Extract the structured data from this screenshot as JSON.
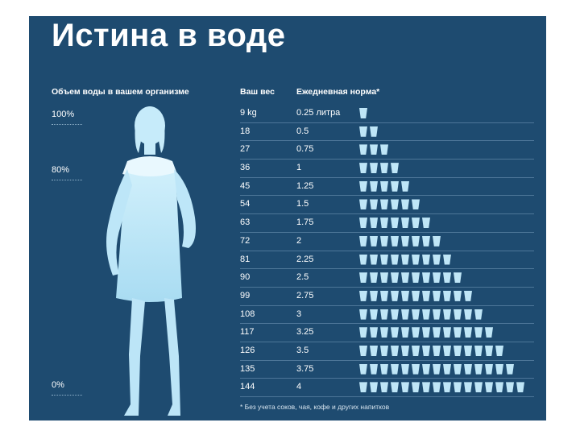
{
  "title": "Истина в воде",
  "body_water": {
    "header": "Объем воды в вашем организме",
    "scale": [
      "100%",
      "80%",
      "0%"
    ]
  },
  "table": {
    "weight_header": "Ваш вес",
    "norm_header": "Ежедневная норма*",
    "rows": [
      {
        "weight": "9 kg",
        "norm": "0.25 литра",
        "cups": 1
      },
      {
        "weight": "18",
        "norm": "0.5",
        "cups": 2
      },
      {
        "weight": "27",
        "norm": "0.75",
        "cups": 3
      },
      {
        "weight": "36",
        "norm": "1",
        "cups": 4
      },
      {
        "weight": "45",
        "norm": "1.25",
        "cups": 5
      },
      {
        "weight": "54",
        "norm": "1.5",
        "cups": 6
      },
      {
        "weight": "63",
        "norm": "1.75",
        "cups": 7
      },
      {
        "weight": "72",
        "norm": "2",
        "cups": 8
      },
      {
        "weight": "81",
        "norm": "2.25",
        "cups": 9
      },
      {
        "weight": "90",
        "norm": "2.5",
        "cups": 10
      },
      {
        "weight": "99",
        "norm": "2.75",
        "cups": 11
      },
      {
        "weight": "108",
        "norm": "3",
        "cups": 12
      },
      {
        "weight": "117",
        "norm": "3.25",
        "cups": 13
      },
      {
        "weight": "126",
        "norm": "3.5",
        "cups": 14
      },
      {
        "weight": "135",
        "norm": "3.75",
        "cups": 15
      },
      {
        "weight": "144",
        "norm": "4",
        "cups": 16
      }
    ]
  },
  "footnote": "* Без учета соков, чая, кофе и других напитков",
  "colors": {
    "background": "#1e4b70",
    "text": "#ffffff",
    "water": "#bfe6f7"
  },
  "icons": {
    "cup": "water-glass-icon",
    "figure": "woman-silhouette-icon"
  }
}
